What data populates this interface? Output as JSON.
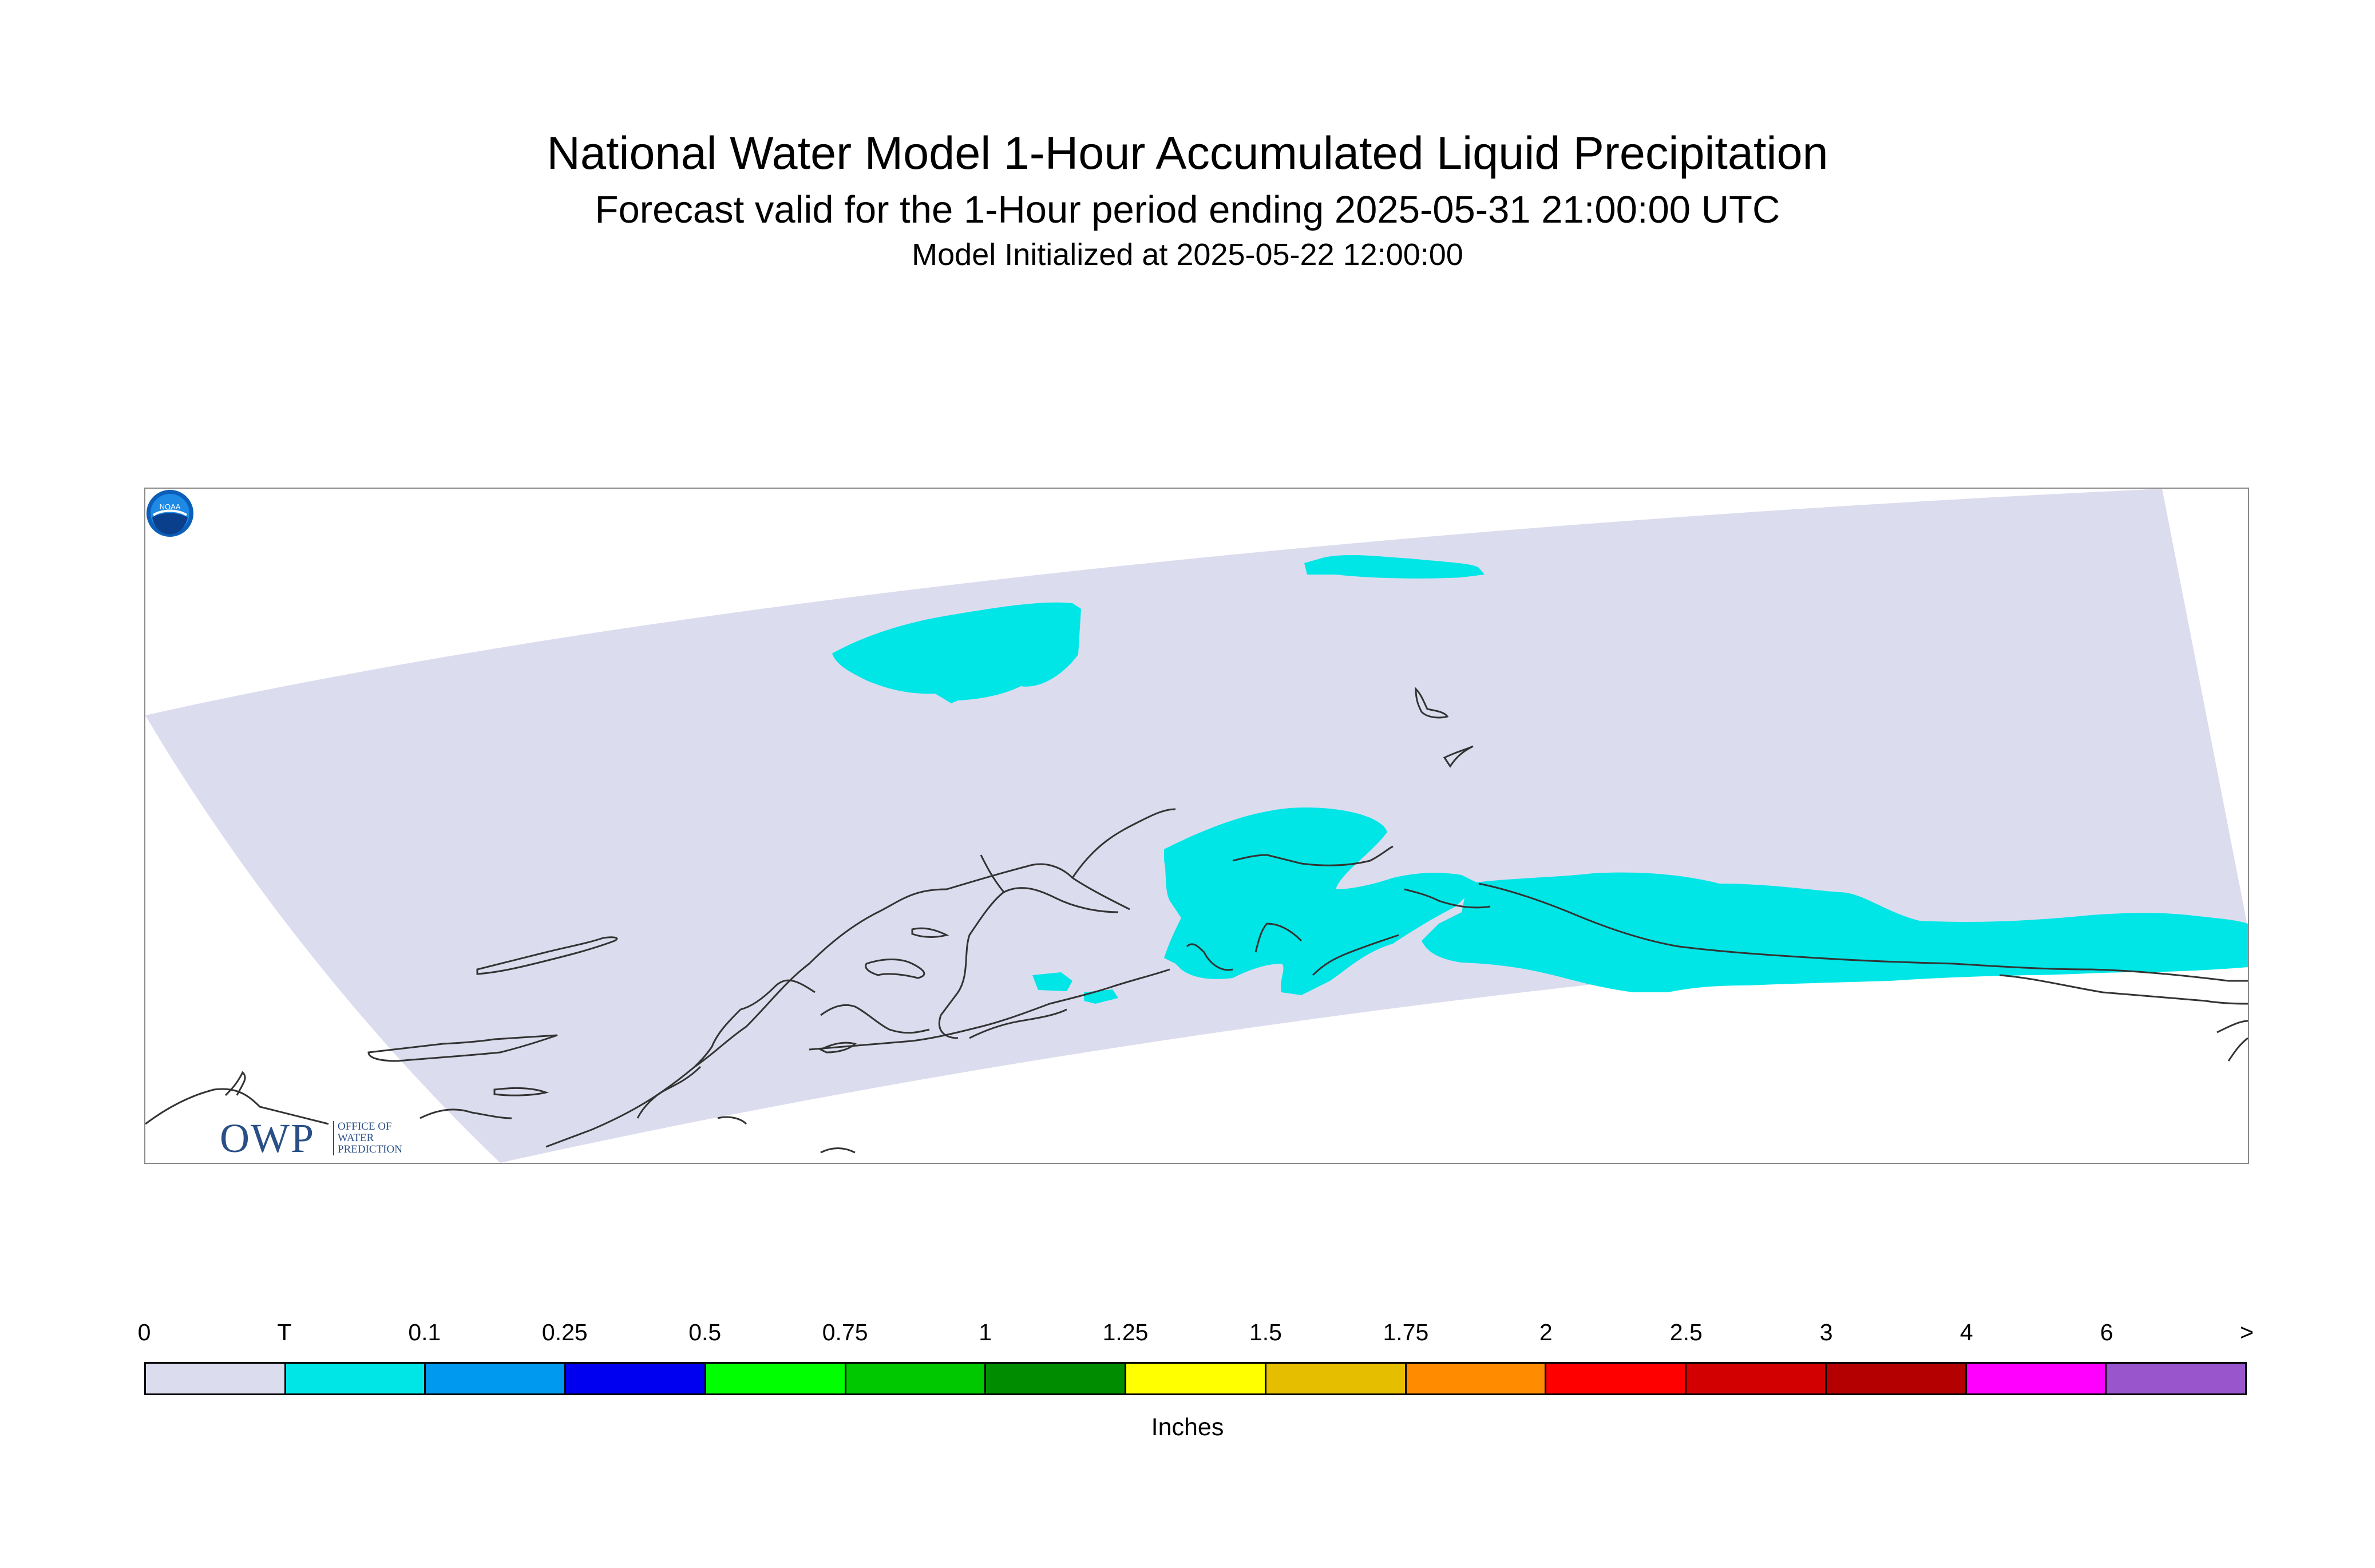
{
  "title": "National Water Model 1-Hour Accumulated Liquid Precipitation",
  "subtitle": "Forecast valid for the 1-Hour period ending 2025-05-31 21:00:00 UTC",
  "init_line": "Model Initialized at 2025-05-22 12:00:00",
  "logos": {
    "owp_letters": "OWP",
    "owp_sub_1": "OFFICE OF",
    "owp_sub_2": "WATER",
    "owp_sub_3": "PREDICTION",
    "noaa_text": "NOAA"
  },
  "legend": {
    "units": "Inches",
    "ticks": [
      "0",
      "T",
      "0.1",
      "0.25",
      "0.5",
      "0.75",
      "1",
      "1.25",
      "1.5",
      "1.75",
      "2",
      "2.5",
      "3",
      "4",
      "6",
      ">"
    ],
    "colors": [
      "#dcdcef",
      "#00e6e6",
      "#0099f0",
      "#0000f0",
      "#00ff00",
      "#00c800",
      "#008c00",
      "#ffff00",
      "#e6be00",
      "#ff8c00",
      "#ff0000",
      "#d20000",
      "#b40000",
      "#ff00ff",
      "#9955cc"
    ]
  },
  "colors": {
    "domain_fill": "#dcdcef",
    "precip_trace": "#00e6e6",
    "coastline": "#333333",
    "frame": "#8a8a8a"
  }
}
